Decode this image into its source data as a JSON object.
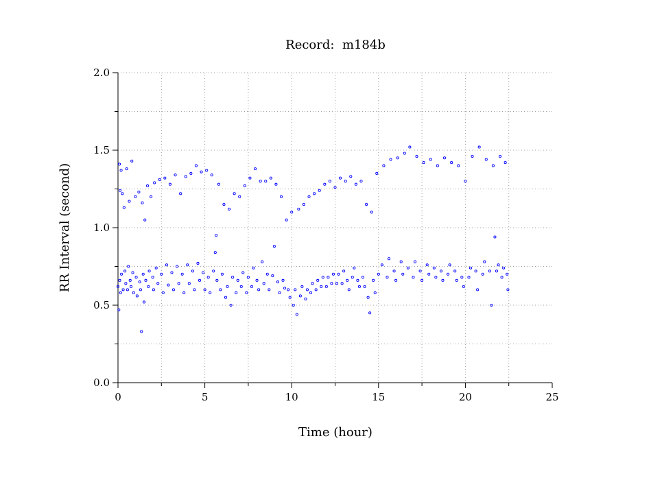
{
  "chart_data": {
    "type": "scatter",
    "title": "Record:  m184b",
    "xlabel": "Time (hour)",
    "ylabel": "RR Interval (second)",
    "xlim": [
      0,
      25
    ],
    "ylim": [
      0.0,
      2.0
    ],
    "x_ticks": [
      0,
      5,
      10,
      15,
      20,
      25
    ],
    "x_tick_labels": [
      "0",
      "5",
      "10",
      "15",
      "20",
      "25"
    ],
    "x_minor_ticks": [
      2.5,
      7.5,
      12.5,
      17.5,
      22.5
    ],
    "y_ticks": [
      0.0,
      0.5,
      1.0,
      1.5,
      2.0
    ],
    "y_tick_labels": [
      "0.0",
      "0.5",
      "1.0",
      "1.5",
      "2.0"
    ],
    "y_minor_ticks": [
      0.25,
      0.75,
      1.25,
      1.75
    ],
    "grid": true,
    "marker": "open-circle",
    "series_color": "#0000ff",
    "series": [
      {
        "points": [
          [
            0.0,
            0.62
          ],
          [
            0.05,
            0.47
          ],
          [
            0.08,
            1.41
          ],
          [
            0.1,
            0.66
          ],
          [
            0.12,
            1.24
          ],
          [
            0.15,
            0.58
          ],
          [
            0.18,
            1.37
          ],
          [
            0.2,
            0.7
          ],
          [
            0.25,
            1.22
          ],
          [
            0.3,
            0.6
          ],
          [
            0.35,
            1.13
          ],
          [
            0.4,
            0.72
          ],
          [
            0.45,
            0.64
          ],
          [
            0.5,
            1.38
          ],
          [
            0.55,
            0.6
          ],
          [
            0.6,
            0.75
          ],
          [
            0.65,
            1.17
          ],
          [
            0.7,
            0.66
          ],
          [
            0.75,
            0.62
          ],
          [
            0.8,
            1.43
          ],
          [
            0.85,
            0.71
          ],
          [
            0.9,
            0.58
          ],
          [
            1.0,
            1.2
          ],
          [
            1.05,
            0.68
          ],
          [
            1.1,
            0.56
          ],
          [
            1.2,
            1.23
          ],
          [
            1.25,
            0.65
          ],
          [
            1.3,
            0.6
          ],
          [
            1.35,
            0.33
          ],
          [
            1.4,
            1.16
          ],
          [
            1.45,
            0.7
          ],
          [
            1.5,
            0.52
          ],
          [
            1.55,
            1.05
          ],
          [
            1.6,
            0.66
          ],
          [
            1.7,
            1.27
          ],
          [
            1.75,
            0.62
          ],
          [
            1.8,
            0.72
          ],
          [
            1.9,
            1.2
          ],
          [
            2.0,
            0.68
          ],
          [
            2.05,
            0.6
          ],
          [
            2.1,
            1.29
          ],
          [
            2.2,
            0.74
          ],
          [
            2.3,
            0.64
          ],
          [
            2.4,
            1.31
          ],
          [
            2.5,
            0.7
          ],
          [
            2.6,
            0.58
          ],
          [
            2.7,
            1.32
          ],
          [
            2.8,
            0.76
          ],
          [
            2.9,
            0.63
          ],
          [
            3.0,
            1.28
          ],
          [
            3.1,
            0.71
          ],
          [
            3.2,
            0.6
          ],
          [
            3.3,
            1.34
          ],
          [
            3.4,
            0.75
          ],
          [
            3.5,
            0.64
          ],
          [
            3.6,
            1.22
          ],
          [
            3.7,
            0.7
          ],
          [
            3.8,
            0.58
          ],
          [
            3.9,
            1.33
          ],
          [
            4.0,
            0.76
          ],
          [
            4.1,
            0.64
          ],
          [
            4.2,
            1.35
          ],
          [
            4.3,
            0.72
          ],
          [
            4.4,
            0.6
          ],
          [
            4.5,
            1.4
          ],
          [
            4.6,
            0.77
          ],
          [
            4.7,
            0.66
          ],
          [
            4.8,
            1.36
          ],
          [
            4.9,
            0.71
          ],
          [
            5.0,
            0.6
          ],
          [
            5.1,
            1.37
          ],
          [
            5.2,
            0.68
          ],
          [
            5.3,
            0.58
          ],
          [
            5.4,
            1.34
          ],
          [
            5.5,
            0.72
          ],
          [
            5.6,
            0.84
          ],
          [
            5.65,
            0.95
          ],
          [
            5.7,
            0.66
          ],
          [
            5.8,
            1.28
          ],
          [
            5.9,
            0.6
          ],
          [
            6.0,
            0.7
          ],
          [
            6.1,
            1.15
          ],
          [
            6.2,
            0.55
          ],
          [
            6.3,
            0.62
          ],
          [
            6.4,
            1.12
          ],
          [
            6.5,
            0.5
          ],
          [
            6.6,
            0.68
          ],
          [
            6.7,
            1.22
          ],
          [
            6.8,
            0.58
          ],
          [
            6.9,
            0.66
          ],
          [
            7.0,
            1.2
          ],
          [
            7.1,
            0.62
          ],
          [
            7.2,
            0.71
          ],
          [
            7.3,
            1.27
          ],
          [
            7.4,
            0.58
          ],
          [
            7.5,
            0.68
          ],
          [
            7.6,
            1.32
          ],
          [
            7.7,
            0.62
          ],
          [
            7.8,
            0.74
          ],
          [
            7.9,
            1.38
          ],
          [
            8.0,
            0.66
          ],
          [
            8.1,
            0.6
          ],
          [
            8.2,
            1.3
          ],
          [
            8.3,
            0.78
          ],
          [
            8.4,
            0.64
          ],
          [
            8.5,
            1.3
          ],
          [
            8.6,
            0.7
          ],
          [
            8.7,
            0.6
          ],
          [
            8.8,
            1.32
          ],
          [
            8.9,
            0.69
          ],
          [
            9.0,
            0.88
          ],
          [
            9.1,
            1.28
          ],
          [
            9.2,
            0.65
          ],
          [
            9.3,
            0.58
          ],
          [
            9.4,
            1.2
          ],
          [
            9.5,
            0.66
          ],
          [
            9.6,
            0.61
          ],
          [
            9.7,
            1.05
          ],
          [
            9.8,
            0.6
          ],
          [
            9.9,
            0.55
          ],
          [
            10.0,
            1.1
          ],
          [
            10.1,
            0.5
          ],
          [
            10.2,
            0.6
          ],
          [
            10.3,
            0.44
          ],
          [
            10.4,
            1.12
          ],
          [
            10.5,
            0.56
          ],
          [
            10.6,
            0.62
          ],
          [
            10.7,
            1.15
          ],
          [
            10.8,
            0.54
          ],
          [
            10.9,
            0.6
          ],
          [
            11.0,
            1.2
          ],
          [
            11.1,
            0.58
          ],
          [
            11.2,
            0.64
          ],
          [
            11.3,
            1.22
          ],
          [
            11.4,
            0.6
          ],
          [
            11.5,
            0.66
          ],
          [
            11.6,
            1.24
          ],
          [
            11.7,
            0.62
          ],
          [
            11.8,
            0.68
          ],
          [
            11.9,
            1.28
          ],
          [
            12.0,
            0.62
          ],
          [
            12.1,
            0.68
          ],
          [
            12.2,
            1.3
          ],
          [
            12.3,
            0.64
          ],
          [
            12.4,
            0.7
          ],
          [
            12.5,
            1.26
          ],
          [
            12.6,
            0.64
          ],
          [
            12.7,
            0.7
          ],
          [
            12.8,
            1.32
          ],
          [
            12.9,
            0.64
          ],
          [
            13.0,
            0.72
          ],
          [
            13.1,
            1.3
          ],
          [
            13.2,
            0.66
          ],
          [
            13.3,
            0.6
          ],
          [
            13.4,
            1.33
          ],
          [
            13.5,
            0.68
          ],
          [
            13.6,
            0.74
          ],
          [
            13.7,
            1.28
          ],
          [
            13.8,
            0.66
          ],
          [
            13.9,
            0.62
          ],
          [
            14.0,
            1.3
          ],
          [
            14.1,
            0.68
          ],
          [
            14.2,
            0.62
          ],
          [
            14.3,
            1.15
          ],
          [
            14.4,
            0.55
          ],
          [
            14.5,
            0.45
          ],
          [
            14.6,
            1.1
          ],
          [
            14.7,
            0.66
          ],
          [
            14.8,
            0.58
          ],
          [
            14.9,
            1.35
          ],
          [
            15.0,
            0.7
          ],
          [
            15.2,
            0.76
          ],
          [
            15.3,
            1.4
          ],
          [
            15.5,
            0.68
          ],
          [
            15.6,
            0.8
          ],
          [
            15.7,
            1.44
          ],
          [
            15.9,
            0.72
          ],
          [
            16.0,
            0.66
          ],
          [
            16.1,
            1.45
          ],
          [
            16.3,
            0.78
          ],
          [
            16.4,
            0.7
          ],
          [
            16.5,
            1.48
          ],
          [
            16.7,
            0.74
          ],
          [
            16.8,
            1.52
          ],
          [
            17.0,
            0.68
          ],
          [
            17.1,
            0.78
          ],
          [
            17.2,
            1.46
          ],
          [
            17.4,
            0.72
          ],
          [
            17.5,
            0.66
          ],
          [
            17.6,
            1.42
          ],
          [
            17.8,
            0.76
          ],
          [
            17.9,
            0.7
          ],
          [
            18.0,
            1.44
          ],
          [
            18.2,
            0.74
          ],
          [
            18.3,
            0.68
          ],
          [
            18.4,
            1.4
          ],
          [
            18.6,
            0.72
          ],
          [
            18.7,
            0.66
          ],
          [
            18.8,
            1.45
          ],
          [
            19.0,
            0.7
          ],
          [
            19.1,
            0.76
          ],
          [
            19.2,
            1.42
          ],
          [
            19.4,
            0.72
          ],
          [
            19.5,
            0.66
          ],
          [
            19.6,
            1.4
          ],
          [
            19.8,
            0.68
          ],
          [
            19.9,
            0.62
          ],
          [
            20.0,
            1.3
          ],
          [
            20.2,
            0.68
          ],
          [
            20.3,
            0.74
          ],
          [
            20.4,
            1.46
          ],
          [
            20.6,
            0.72
          ],
          [
            20.7,
            0.6
          ],
          [
            20.8,
            1.52
          ],
          [
            21.0,
            0.7
          ],
          [
            21.1,
            0.78
          ],
          [
            21.2,
            1.44
          ],
          [
            21.4,
            0.72
          ],
          [
            21.5,
            0.5
          ],
          [
            21.6,
            1.4
          ],
          [
            21.7,
            0.94
          ],
          [
            21.8,
            0.72
          ],
          [
            21.9,
            0.76
          ],
          [
            22.0,
            1.46
          ],
          [
            22.1,
            0.68
          ],
          [
            22.2,
            0.74
          ],
          [
            22.3,
            1.42
          ],
          [
            22.4,
            0.7
          ],
          [
            22.45,
            0.6
          ]
        ]
      }
    ]
  }
}
